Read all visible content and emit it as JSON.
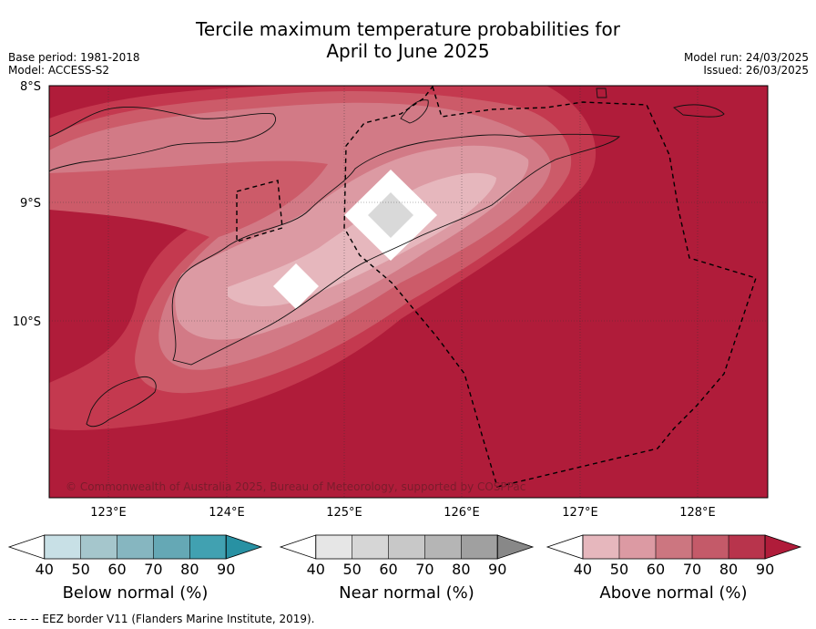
{
  "title": {
    "line1": "Tercile maximum temperature probabilities for",
    "line2": "April to June 2025"
  },
  "meta": {
    "base_period": "Base period: 1981-2018",
    "model": "Model: ACCESS-S2",
    "model_run": "Model run: 24/03/2025",
    "issued": "Issued: 26/03/2025"
  },
  "map": {
    "lat_labels": [
      "8°S",
      "9°S",
      "10°S"
    ],
    "lon_labels": [
      "123°E",
      "124°E",
      "125°E",
      "126°E",
      "127°E",
      "128°E"
    ],
    "copyright": "© Commonwealth of Australia 2025, Bureau of Meteorology, supported by COSPPac",
    "colors": {
      "above_90": "#b01c3a",
      "above_80": "#c4394f",
      "above_70": "#cc5b69",
      "above_60": "#d27a86",
      "above_50": "#dc9aa3",
      "above_40": "#e6b7bd",
      "near_normal_grey": "#d9d9d9"
    }
  },
  "legends": [
    {
      "name": "Below normal (%)",
      "ticks": [
        "40",
        "50",
        "60",
        "70",
        "80",
        "90"
      ],
      "colors": [
        "#ffffff",
        "#c8e0e6",
        "#a5c6cc",
        "#86b6c0",
        "#65a8b5",
        "#41a1b1",
        "#2891a3"
      ]
    },
    {
      "name": "Near normal (%)",
      "ticks": [
        "40",
        "50",
        "60",
        "70",
        "80",
        "90"
      ],
      "colors": [
        "#ffffff",
        "#e6e6e6",
        "#d6d6d6",
        "#c8c8c8",
        "#b5b5b5",
        "#a0a0a0",
        "#888888"
      ]
    },
    {
      "name": "Above normal (%)",
      "ticks": [
        "40",
        "50",
        "60",
        "70",
        "80",
        "90"
      ],
      "colors": [
        "#ffffff",
        "#e6b7bd",
        "#dc9aa3",
        "#cc7680",
        "#c45a69",
        "#b8344c",
        "#b01c3a"
      ]
    }
  ],
  "footnote": "--  --  -- EEZ border V11 (Flanders Marine Institute, 2019)."
}
